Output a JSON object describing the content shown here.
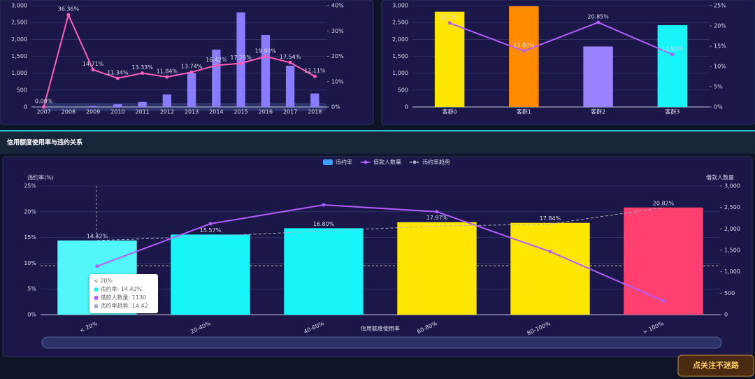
{
  "chart_data": [
    {
      "type": "combo",
      "categories": [
        "2007",
        "2008",
        "2009",
        "2010",
        "2011",
        "2012",
        "2013",
        "2014",
        "2015",
        "2016",
        "2017",
        "2018"
      ],
      "ylim": [
        0,
        3000
      ],
      "yticks": [
        0,
        500,
        {
          "value": 1000,
          "label": "1,000"
        },
        {
          "value": 1500,
          "label": "1,500"
        },
        {
          "value": 2000,
          "label": "2,000"
        },
        {
          "value": 2500,
          "label": "2,500"
        },
        {
          "value": 3000,
          "label": "3,000"
        }
      ],
      "y2lim": [
        0,
        40
      ],
      "y2ticks": [
        {
          "value": 0,
          "label": "0%"
        },
        {
          "value": 10,
          "label": "10%"
        },
        {
          "value": 20,
          "label": "20%"
        },
        {
          "value": 30,
          "label": "30%"
        },
        {
          "value": 40,
          "label": "40%"
        }
      ],
      "grid": true,
      "series": [
        {
          "type": "bar",
          "color": "#8a7cff",
          "values": [
            2,
            5,
            30,
            80,
            150,
            370,
            1000,
            1700,
            2800,
            2130,
            1220,
            400
          ]
        },
        {
          "type": "line",
          "axis": "y2",
          "color": "#ff5fb8",
          "values": [
            0.0,
            36.36,
            14.71,
            11.34,
            13.33,
            11.84,
            13.74,
            16.42,
            17.25,
            19.93,
            17.54,
            12.11
          ],
          "value_labels": [
            "0.00%",
            "36.36%",
            "14.71%",
            "11.34%",
            "13.33%",
            "11.84%",
            "13.74%",
            "16.42%",
            "17.25%",
            "19.93%",
            "17.54%",
            "12.11%"
          ]
        }
      ]
    },
    {
      "type": "combo",
      "categories": [
        "客群0",
        "客群1",
        "客群2",
        "客群3"
      ],
      "ylim": [
        0,
        3000
      ],
      "yticks": [
        0,
        500,
        {
          "value": 1000,
          "label": "1,000"
        },
        {
          "value": 1500,
          "label": "1,500"
        },
        {
          "value": 2000,
          "label": "2,000"
        },
        {
          "value": 2500,
          "label": "2,500"
        },
        {
          "value": 3000,
          "label": "3,000"
        }
      ],
      "y2lim": [
        0,
        25
      ],
      "y2ticks": [
        {
          "value": 0,
          "label": "0%"
        },
        {
          "value": 5,
          "label": "5%"
        },
        {
          "value": 10,
          "label": "10%"
        },
        {
          "value": 15,
          "label": "15%"
        },
        {
          "value": 20,
          "label": "20%"
        },
        {
          "value": 25,
          "label": "25%"
        }
      ],
      "grid": true,
      "series": [
        {
          "type": "bar",
          "color": "#ffe600",
          "colors": [
            "#ffe600",
            "#ff8c00",
            "#9b82ff",
            "#16f5f7"
          ],
          "values": [
            2820,
            2980,
            1790,
            2420
          ]
        },
        {
          "type": "line",
          "axis": "y2",
          "color": "#b35cff",
          "values": [
            20.71,
            13.8,
            20.85,
            12.95
          ],
          "value_labels": [
            "20.71%",
            "13.80%",
            "20.85%",
            "12.95%"
          ]
        }
      ]
    },
    {
      "type": "combo",
      "title": "信用额度使用率与违约关系",
      "xlabel": "信用额度使用率",
      "ylabel": "违约率(%)",
      "y2label": "借款人数量",
      "categories": [
        "< 20%",
        "20-40%",
        "40-60%",
        "60-80%",
        "80-100%",
        "> 100%"
      ],
      "ylim": [
        0,
        25
      ],
      "yticks": [
        {
          "value": 0,
          "label": "0%"
        },
        {
          "value": 5,
          "label": "5%"
        },
        {
          "value": 10,
          "label": "10%"
        },
        {
          "value": 15,
          "label": "15%"
        },
        {
          "value": 20,
          "label": "20%"
        },
        {
          "value": 25,
          "label": "25%"
        }
      ],
      "y2lim": [
        0,
        3000
      ],
      "y2ticks": [
        0,
        500,
        {
          "value": 1000,
          "label": "1,000"
        },
        {
          "value": 1500,
          "label": "1,500"
        },
        {
          "value": 2000,
          "label": "2,000"
        },
        {
          "value": 2500,
          "label": "2,500"
        },
        {
          "value": 3000,
          "label": "3,000"
        }
      ],
      "grid": true,
      "legend": "top",
      "series": [
        {
          "type": "bar",
          "name": "违约率",
          "color": "#3ba0ff",
          "colors": [
            "#52f7fb",
            "#16f5f7",
            "#16f5f7",
            "#ffe600",
            "#ffe600",
            "#ff4070"
          ],
          "values": [
            14.42,
            15.57,
            16.8,
            17.97,
            17.84,
            20.82
          ],
          "value_labels": [
            "14.42%",
            "15.57%",
            "16.80%",
            "17.97%",
            "17.84%",
            "20.82%"
          ]
        },
        {
          "type": "line",
          "name": "借款人数量",
          "axis": "y2",
          "color": "#b35cff",
          "values": [
            1130,
            2120,
            2560,
            2400,
            1470,
            320
          ]
        },
        {
          "type": "line",
          "name": "违约率趋势",
          "color": "#aab0cc",
          "dash": true,
          "values": [
            14.42,
            15.2,
            16.3,
            17.2,
            17.6,
            20.82
          ]
        }
      ],
      "tooltip": {
        "title": "< 20%",
        "lines": [
          "违约率: 14.42%",
          "借款人数量: 1130",
          "违约率趋势: 14.42"
        ]
      }
    }
  ],
  "watermark": "点关注不迷路"
}
